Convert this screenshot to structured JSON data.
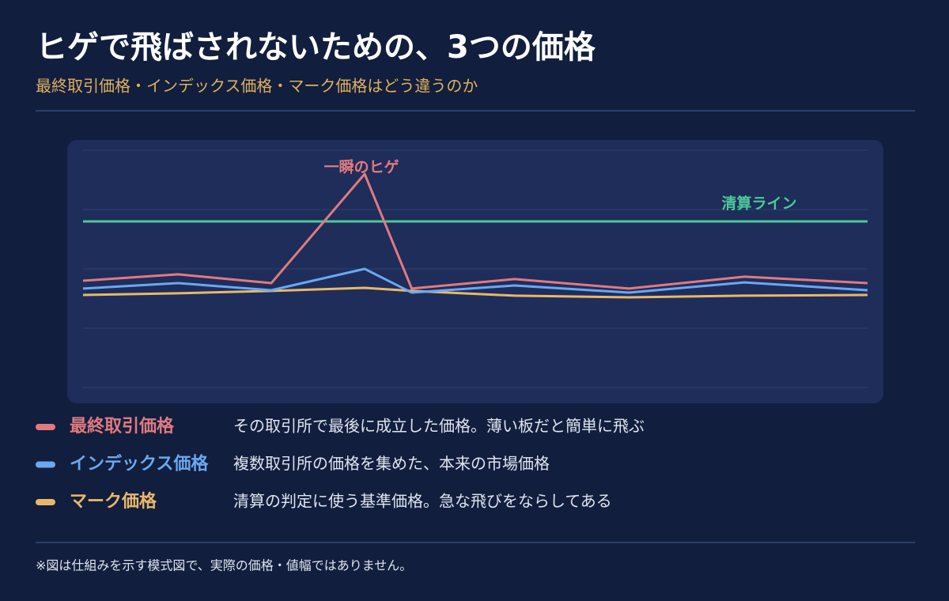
{
  "chart_data": {
    "type": "line",
    "title": "ヒゲで飛ばされないための、3つの価格",
    "subtitle": "最終取引価格・インデックス価格・マーク価格はどう違うのか",
    "x": [
      0,
      12.1,
      24,
      35.9,
      41.9,
      55,
      69.6,
      84.3,
      100
    ],
    "xlim": [
      0,
      100
    ],
    "ylim": [
      0,
      100
    ],
    "yticks": [
      0,
      25,
      50,
      75,
      100
    ],
    "grid": true,
    "series": [
      {
        "name": "最終取引価格",
        "description": "その取引所で最後に成立した価格。薄い板だと簡単に飛ぶ",
        "color": "#e07a80",
        "values": [
          45,
          47.7,
          44,
          90,
          41.7,
          45.7,
          41.7,
          46.7,
          44
        ]
      },
      {
        "name": "インデックス価格",
        "description": "複数取引所の価格を集めた、本来の市場価格",
        "color": "#6aa8f0",
        "values": [
          41.7,
          44,
          41,
          50,
          40,
          43,
          40,
          44.3,
          41
        ]
      },
      {
        "name": "マーク価格",
        "description": "清算の判定に使う基準価格。急な飛びをならしてある",
        "color": "#e8b86a",
        "values": [
          39,
          39.7,
          40.7,
          42,
          40.7,
          38.7,
          38,
          38.7,
          39
        ]
      }
    ],
    "reference_line": {
      "label": "清算ライン",
      "value": 70,
      "color": "#4cc99a"
    },
    "annotation": {
      "text": "一瞬のヒゲ",
      "series": 0,
      "index": 3
    },
    "note": "※図は仕組みを示す模式図で、実際の価格・値幅ではありません。"
  }
}
